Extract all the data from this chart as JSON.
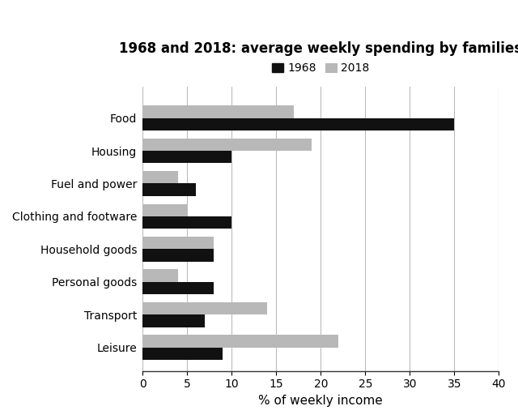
{
  "title": "1968 and 2018: average weekly spending by families",
  "categories": [
    "Food",
    "Housing",
    "Fuel and power",
    "Clothing and footware",
    "Household goods",
    "Personal goods",
    "Transport",
    "Leisure"
  ],
  "values_1968": [
    35,
    10,
    6,
    10,
    8,
    8,
    7,
    9
  ],
  "values_2018": [
    17,
    19,
    4,
    5,
    8,
    4,
    14,
    22
  ],
  "color_1968": "#111111",
  "color_2018": "#b8b8b8",
  "xlabel": "% of weekly income",
  "xlim": [
    0,
    40
  ],
  "xticks": [
    0,
    5,
    10,
    15,
    20,
    25,
    30,
    35,
    40
  ],
  "legend_labels": [
    "1968",
    "2018"
  ],
  "bar_height": 0.38,
  "background_color": "#ffffff",
  "grid_color": "#bbbbbb"
}
